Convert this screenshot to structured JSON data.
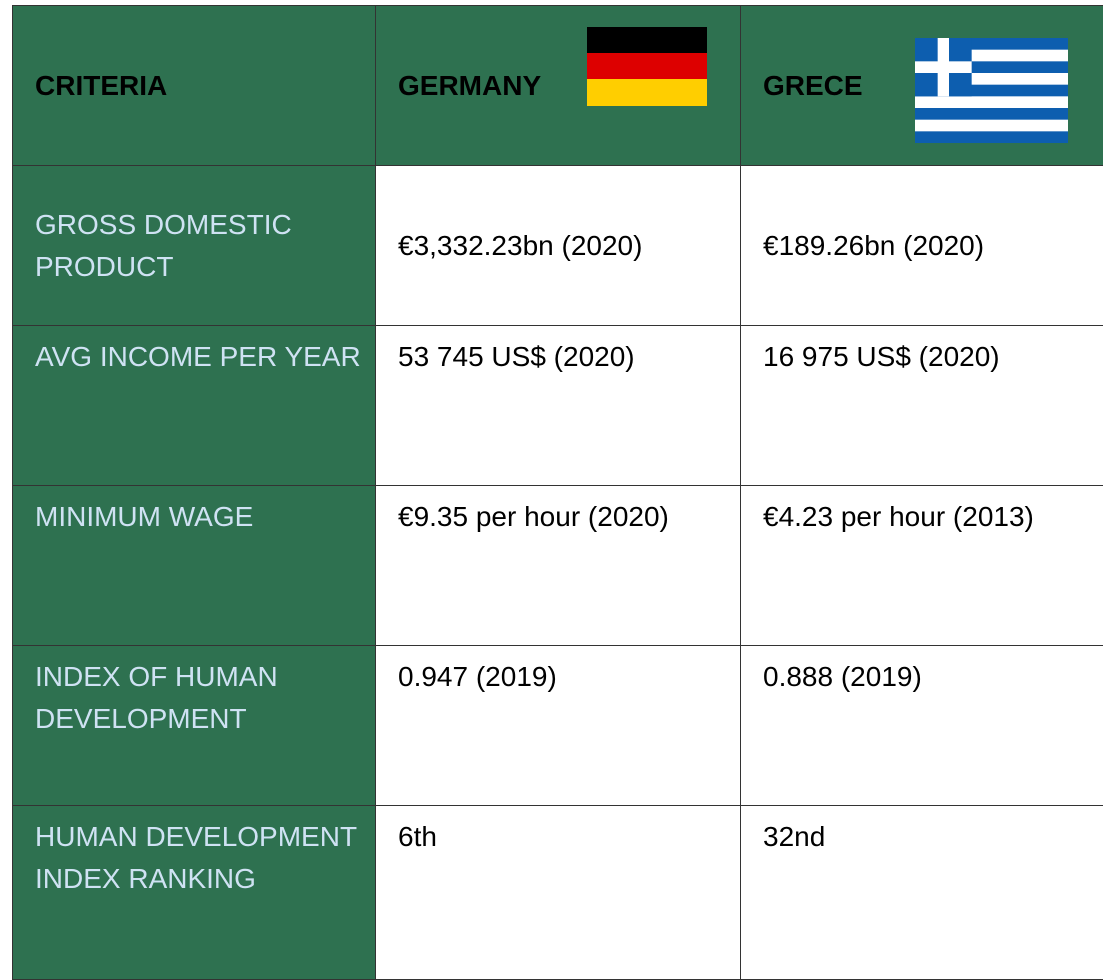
{
  "header": {
    "criteria": "CRITERIA",
    "germany": "GERMANY",
    "greece": "GRECE"
  },
  "rows": [
    [
      "GROSS DOMESTIC PRODUCT",
      "€3,332.23bn (2020)",
      "€189.26bn (2020)"
    ],
    [
      "AVG INCOME PER YEAR",
      "53 745 US$ (2020)",
      "16 975 US$ (2020)"
    ],
    [
      "MINIMUM WAGE",
      "€9.35 per hour (2020)",
      "€4.23 per hour (2013)"
    ],
    [
      "INDEX OF HUMAN DEVELOPMENT",
      "0.947 (2019)",
      "0.888 (2019)"
    ],
    [
      "HUMAN DEVELOPMENT INDEX RANKING",
      "6th",
      "32nd"
    ]
  ]
}
